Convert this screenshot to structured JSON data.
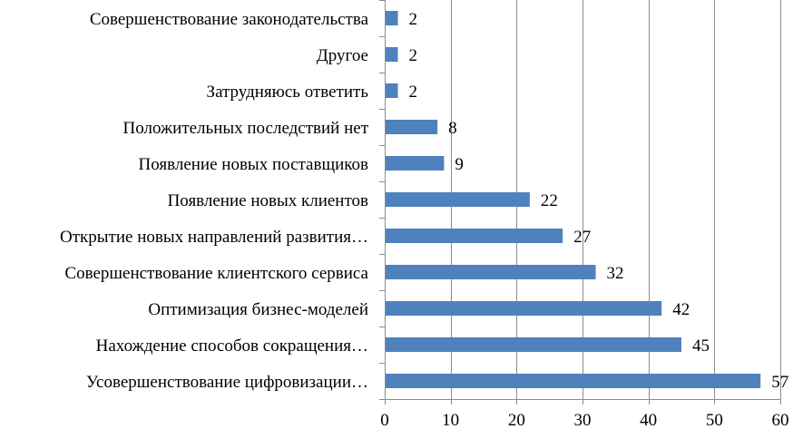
{
  "chart_data": {
    "type": "bar",
    "orientation": "horizontal",
    "categories": [
      "Совершенствование законодательства",
      "Другое",
      "Затрудняюсь ответить",
      "Положительных последствий нет",
      "Появление новых поставщиков",
      "Появление новых клиентов",
      "Открытие новых направлений развития…",
      "Совершенствование клиентского сервиса",
      "Оптимизация бизнес-моделей",
      "Нахождение способов сокращения…",
      "Усовершенствование цифровизации…"
    ],
    "values": [
      2,
      2,
      2,
      8,
      9,
      22,
      27,
      32,
      42,
      45,
      57
    ],
    "xlim": [
      0,
      60
    ],
    "xticks": [
      0,
      10,
      20,
      30,
      40,
      50,
      60
    ],
    "grid": true,
    "legend": false,
    "bar_color": "#4f81bd",
    "title": "",
    "xlabel": "",
    "ylabel": ""
  }
}
